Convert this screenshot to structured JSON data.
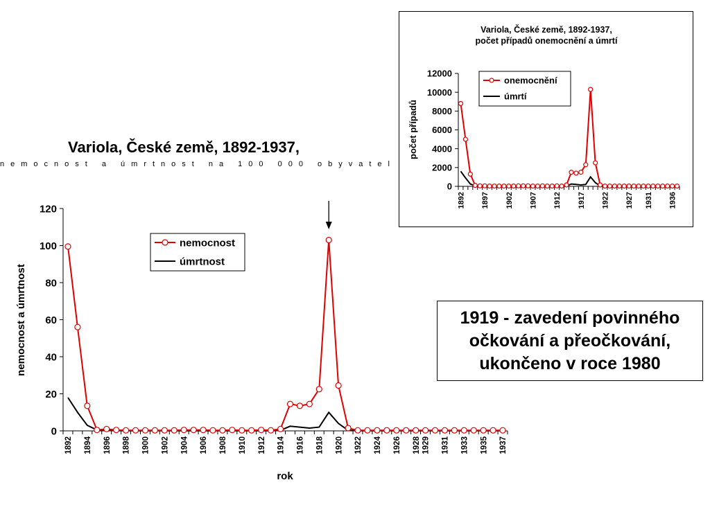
{
  "main": {
    "title": "Variola, České země, 1892-1937,",
    "subtitle": "nemocnost a úmrtnost na 100 000 obyvatel"
  },
  "inset": {
    "title_line1": "Variola, České země, 1892-1937,",
    "title_line2": "počet případů onemocnění a úmrtí"
  },
  "note": {
    "line1": "1919 - zavedení povinného",
    "line2": "očkování a přeočkování,",
    "line3": "ukončeno v roce 1980"
  },
  "colors": {
    "incidence": "#e00000",
    "mortality": "#000000"
  },
  "chart_data": [
    {
      "type": "line",
      "title": "Variola, České země, 1892-1937,",
      "subtitle": "nemocnost a úmrtnost na 100 000 obyvatel",
      "xlabel": "rok",
      "ylabel": "nemocnost a úmrtnost",
      "ylim": [
        0,
        120
      ],
      "yticks": [
        "0",
        "20",
        "40",
        "60",
        "80",
        "100",
        "120"
      ],
      "x": [
        1892,
        1893,
        1894,
        1895,
        1896,
        1897,
        1898,
        1899,
        1900,
        1901,
        1902,
        1903,
        1904,
        1905,
        1906,
        1907,
        1908,
        1909,
        1910,
        1911,
        1912,
        1913,
        1914,
        1915,
        1916,
        1917,
        1918,
        1919,
        1920,
        1921,
        1922,
        1923,
        1924,
        1925,
        1926,
        1927,
        1928,
        1929,
        1930,
        1931,
        1932,
        1933,
        1934,
        1935,
        1936,
        1937
      ],
      "xtick_labels": [
        "1892",
        "1894",
        "1896",
        "1898",
        "1900",
        "1902",
        "1904",
        "1906",
        "1908",
        "1910",
        "1912",
        "1914",
        "1916",
        "1918",
        "1920",
        "1922",
        "1924",
        "1926",
        "1928",
        "1929",
        "1931",
        "1933",
        "1935",
        "1937"
      ],
      "legend_position": "upper-middle",
      "annotation": "arrow pointing to 1919 peak",
      "series": [
        {
          "name": "nemocnost",
          "marker": "circle",
          "values": [
            99.5,
            56,
            13.5,
            0.5,
            1,
            0.5,
            0.3,
            0.3,
            0.3,
            0.3,
            0.3,
            0.3,
            0.5,
            0.5,
            0.5,
            0.3,
            0.3,
            0.5,
            0.3,
            0.3,
            0.5,
            0.3,
            1,
            14.5,
            13.5,
            14.5,
            22.5,
            103,
            24.5,
            1.5,
            0.3,
            0.3,
            0.3,
            0.3,
            0.3,
            0.3,
            0.3,
            0.3,
            0.3,
            0.3,
            0.3,
            0.3,
            0.3,
            0.3,
            0.3,
            0.3
          ]
        },
        {
          "name": "úmrtnost",
          "marker": "none",
          "values": [
            18,
            10,
            3,
            0.5,
            0.3,
            0.2,
            0.1,
            0.1,
            0.1,
            0.1,
            0.1,
            0.1,
            0.1,
            0.1,
            0.1,
            0.1,
            0.1,
            0.1,
            0.1,
            0.1,
            0.1,
            0.1,
            0.3,
            2.5,
            2,
            1.5,
            2,
            10,
            4,
            0.3,
            0.1,
            0.1,
            0.1,
            0.1,
            0.1,
            0.1,
            0.1,
            0.1,
            0.1,
            0.1,
            0.1,
            0.1,
            0.1,
            0.1,
            0.1,
            0.1
          ]
        }
      ]
    },
    {
      "type": "line",
      "title": "Variola, České země, 1892-1937, počet případů onemocnění a úmrtí",
      "xlabel": "",
      "ylabel": "počet případů",
      "ylim": [
        0,
        12000
      ],
      "yticks": [
        "0",
        "2000",
        "4000",
        "6000",
        "8000",
        "10000",
        "12000"
      ],
      "x": [
        1892,
        1893,
        1894,
        1895,
        1896,
        1897,
        1898,
        1899,
        1900,
        1901,
        1902,
        1903,
        1904,
        1905,
        1906,
        1907,
        1908,
        1909,
        1910,
        1911,
        1912,
        1913,
        1914,
        1915,
        1916,
        1917,
        1918,
        1919,
        1920,
        1921,
        1922,
        1923,
        1924,
        1925,
        1926,
        1927,
        1928,
        1929,
        1930,
        1931,
        1932,
        1933,
        1934,
        1935,
        1936,
        1937
      ],
      "xtick_labels": [
        "1892",
        "1897",
        "1902",
        "1907",
        "1912",
        "1917",
        "1922",
        "1927",
        "1931",
        "1936"
      ],
      "legend_position": "top-center",
      "series": [
        {
          "name": "onemocnění",
          "marker": "circle",
          "values": [
            8800,
            5000,
            1300,
            100,
            50,
            50,
            30,
            30,
            30,
            30,
            30,
            30,
            50,
            50,
            50,
            30,
            30,
            50,
            30,
            30,
            50,
            30,
            150,
            1500,
            1400,
            1500,
            2300,
            10300,
            2500,
            150,
            30,
            30,
            30,
            30,
            30,
            30,
            30,
            30,
            30,
            30,
            30,
            30,
            30,
            30,
            30,
            30
          ]
        },
        {
          "name": "úmrtí",
          "marker": "none",
          "values": [
            1600,
            900,
            250,
            50,
            20,
            10,
            10,
            10,
            10,
            10,
            10,
            10,
            10,
            10,
            10,
            10,
            10,
            10,
            10,
            10,
            10,
            10,
            30,
            250,
            200,
            150,
            200,
            1000,
            400,
            30,
            10,
            10,
            10,
            10,
            10,
            10,
            10,
            10,
            10,
            10,
            10,
            10,
            10,
            10,
            10,
            10
          ]
        }
      ]
    }
  ]
}
